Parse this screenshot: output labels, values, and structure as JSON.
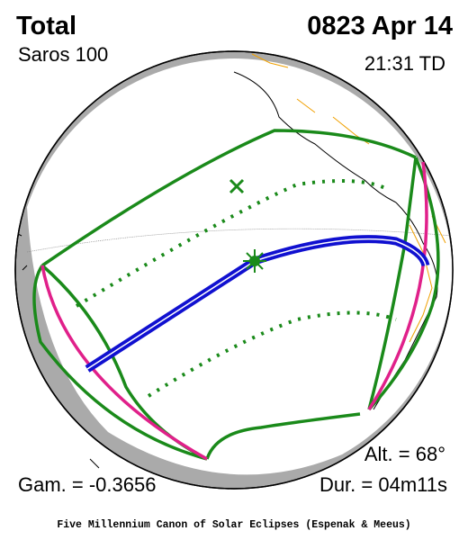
{
  "header": {
    "type": "Total",
    "saros": "Saros 100",
    "date": "0823 Apr 14",
    "time": "21:31 TD"
  },
  "stats": {
    "altitude": "Alt. = 68°",
    "gamma": "Gam. = -0.3656",
    "duration": "Dur. = 04m11s"
  },
  "footer": "Five Millennium Canon of Solar Eclipses (Espenak & Meeus)"
}
